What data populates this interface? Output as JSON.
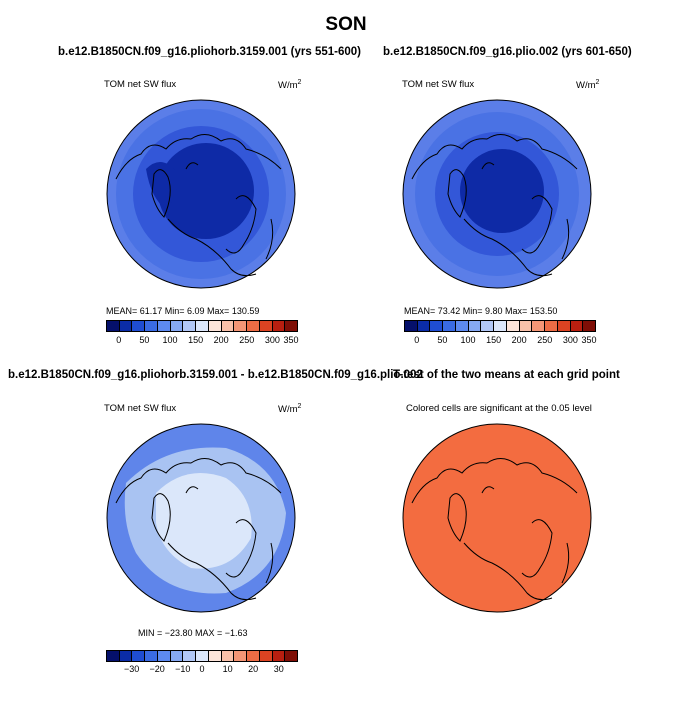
{
  "title": "SON",
  "panels": [
    {
      "title": "b.e12.B1850CN.f09_g16.pliohorb.3159.001 (yrs 551-600)",
      "left_label": "TOM net SW flux",
      "units_base": "W/m",
      "units_sup": "2",
      "stats": "MEAN=  61.17   Min=    6.09   Max=  130.59",
      "colorbar_ticks": [
        "0",
        "50",
        "100",
        "150",
        "200",
        "250",
        "300",
        "350"
      ]
    },
    {
      "title": "b.e12.B1850CN.f09_g16.plio.002 (yrs 601-650)",
      "left_label": "TOM net SW flux",
      "units_base": "W/m",
      "units_sup": "2",
      "stats": "MEAN=  73.42   Min=    9.80   Max=  153.50",
      "colorbar_ticks": [
        "0",
        "50",
        "100",
        "150",
        "200",
        "250",
        "300",
        "350"
      ]
    },
    {
      "title": "b.e12.B1850CN.f09_g16.pliohorb.3159.001 - b.e12.B1850CN.f09_g16.plio.002",
      "left_label": "TOM net SW flux",
      "units_base": "W/m",
      "units_sup": "2",
      "stats": "MIN = −23.80  MAX =  −1.63",
      "colorbar_ticks": [
        "−30",
        "−20",
        "−10",
        "0",
        "10",
        "20",
        "30"
      ]
    },
    {
      "title": "T-test of the two means at each grid point",
      "subtitle": "Colored cells are significant at the 0.05 level"
    }
  ],
  "colors": {
    "colorbar": [
      "#05106b",
      "#0b2ca6",
      "#1f4dd2",
      "#3a6be3",
      "#5d8af0",
      "#86a9f3",
      "#b2c8f7",
      "#dce7fb",
      "#fde5da",
      "#f9c1aa",
      "#f49676",
      "#ec6c45",
      "#dc4322",
      "#b81f10",
      "#7f0e06"
    ],
    "deep_blue": "#0e2aa6",
    "mid_blue": "#3357d8",
    "light_blue": "#5b7ee8",
    "diff_pale": "#dbe7fa",
    "diff_mid": "#a9c3f2",
    "diff_blue": "#5f85ea",
    "ttest_orange": "#f36c40"
  }
}
